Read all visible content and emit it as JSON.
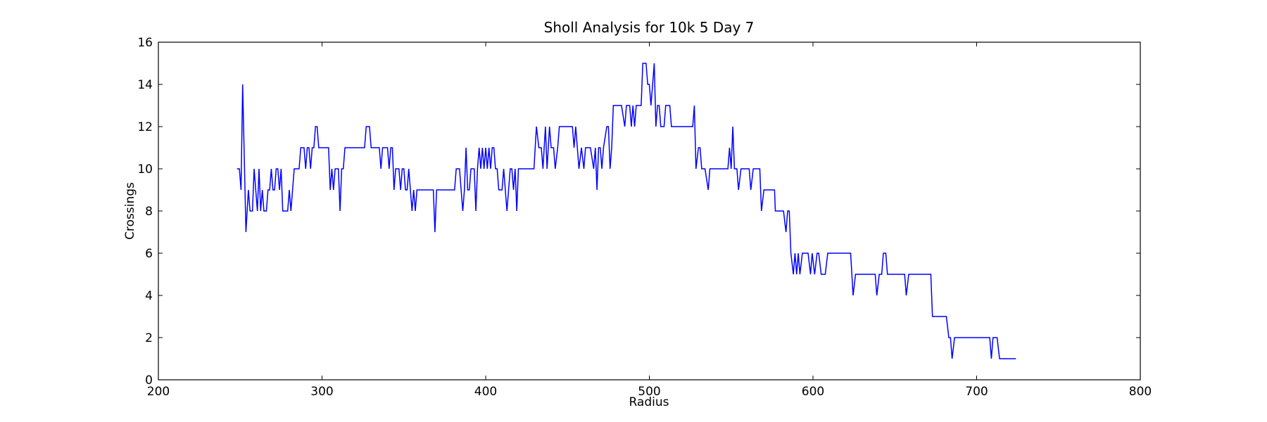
{
  "chart_data": {
    "type": "line",
    "title": "Sholl Analysis for 10k 5 Day 7",
    "x_label": "Radius",
    "y_label": "Crossings",
    "x": [
      248,
      249.5,
      250.5,
      251.5,
      253.5,
      255,
      256,
      257.5,
      258.5,
      259.5,
      260.5,
      261.5,
      262.5,
      263.5,
      264.5,
      266,
      267,
      268,
      269,
      270,
      271,
      272,
      273,
      274,
      275,
      276,
      279,
      280,
      281,
      283,
      286,
      287,
      289,
      290,
      291,
      292,
      293,
      294,
      295,
      296,
      297,
      298,
      304,
      305,
      306,
      307,
      308,
      310,
      311,
      312,
      313,
      314,
      326,
      327,
      329,
      330,
      335,
      336,
      337,
      340,
      341,
      342,
      343,
      344,
      345,
      347,
      348,
      349,
      350,
      351,
      352,
      353,
      354,
      355,
      356,
      357,
      358,
      368,
      369,
      370,
      381,
      382,
      384,
      385,
      386,
      387,
      388,
      389,
      390,
      391,
      393,
      394,
      395,
      396,
      397,
      398,
      399,
      400,
      401,
      402,
      403,
      404,
      405,
      406,
      407,
      408,
      410,
      411,
      412,
      413,
      414,
      415,
      416,
      417,
      418,
      419,
      420,
      425,
      429.5,
      431,
      432.5,
      434,
      435,
      436.5,
      437.5,
      439,
      440,
      441.5,
      442.5,
      444,
      445,
      446,
      453,
      454,
      455,
      456,
      457,
      458.5,
      460,
      461,
      464,
      466,
      467,
      468,
      469,
      470,
      471,
      472,
      474,
      475,
      476,
      477,
      478,
      483,
      485,
      486,
      488,
      489,
      490,
      491,
      492,
      495,
      496,
      498,
      499,
      500,
      501,
      503,
      504,
      505,
      506,
      507,
      509,
      510,
      512.5,
      513.5,
      526.5,
      527.5,
      528.5,
      530,
      531,
      532,
      534,
      536,
      537,
      548,
      549,
      550,
      551,
      552,
      553.5,
      554.5,
      556,
      561,
      562,
      563.5,
      567.5,
      568.5,
      570,
      576.5,
      577,
      582,
      583.5,
      584.5,
      585.5,
      586.5,
      588,
      589,
      590,
      591,
      592,
      593.5,
      597,
      598.5,
      599.5,
      601,
      602.5,
      603.5,
      605,
      607.5,
      609,
      623,
      624.5,
      626,
      638,
      639,
      640.5,
      642,
      643,
      644.5,
      645.5,
      656,
      657,
      658.5,
      672,
      673,
      681.5,
      683,
      684,
      685,
      686.5,
      708,
      709,
      710,
      712.5,
      714,
      724
    ],
    "series": [
      {
        "color": "#0000ff",
        "values": [
          10,
          10,
          9,
          14,
          7,
          9,
          8,
          8,
          10,
          9,
          8,
          10,
          8,
          9,
          8,
          8,
          9,
          9,
          10,
          9,
          9,
          10,
          10,
          9,
          10,
          8,
          8,
          9,
          8,
          10,
          10,
          11,
          11,
          10,
          11,
          11,
          10,
          11,
          11,
          12,
          12,
          11,
          11,
          9,
          10,
          9,
          10,
          10,
          8,
          10,
          10,
          11,
          11,
          12,
          12,
          11,
          11,
          10,
          11,
          11,
          10,
          11,
          11,
          9,
          10,
          10,
          9,
          10,
          10,
          9,
          9,
          10,
          9,
          8,
          9,
          8,
          9,
          9,
          7,
          9,
          9,
          10,
          10,
          9,
          8,
          9,
          11,
          9,
          9,
          10,
          10,
          8,
          10,
          11,
          10,
          11,
          10,
          11,
          10,
          11,
          10,
          11,
          11,
          10,
          10,
          9,
          9,
          10,
          9,
          8,
          9,
          10,
          10,
          9,
          10,
          8,
          10,
          10,
          10,
          12,
          11,
          11,
          10,
          12,
          10,
          12,
          11,
          11,
          10,
          11,
          12,
          12,
          12,
          11,
          12,
          11,
          10,
          11,
          10,
          11,
          11,
          10,
          11,
          9,
          11,
          11,
          10,
          11,
          12,
          12,
          10,
          11,
          13,
          13,
          12,
          13,
          13,
          12,
          13,
          12,
          13,
          13,
          15,
          15,
          14,
          14,
          13,
          15,
          12,
          13,
          13,
          12,
          12,
          13,
          13,
          12,
          12,
          13,
          10,
          11,
          11,
          10,
          10,
          9,
          10,
          10,
          11,
          10,
          12,
          10,
          10,
          9,
          10,
          10,
          9,
          10,
          10,
          8,
          9,
          9,
          8,
          8,
          7,
          8,
          8,
          6,
          5,
          6,
          5,
          6,
          5,
          6,
          6,
          5,
          6,
          5,
          6,
          6,
          5,
          5,
          6,
          6,
          4,
          5,
          5,
          4,
          5,
          5,
          6,
          6,
          5,
          5,
          4,
          5,
          5,
          3,
          3,
          2,
          2,
          1,
          2,
          2,
          1,
          2,
          2,
          1,
          1
        ]
      }
    ],
    "xlim": [
      200,
      800
    ],
    "xticks": [
      200,
      300,
      400,
      500,
      600,
      700,
      800
    ],
    "ylim": [
      0,
      16
    ],
    "yticks": [
      0,
      2,
      4,
      6,
      8,
      10,
      12,
      14,
      16
    ]
  }
}
